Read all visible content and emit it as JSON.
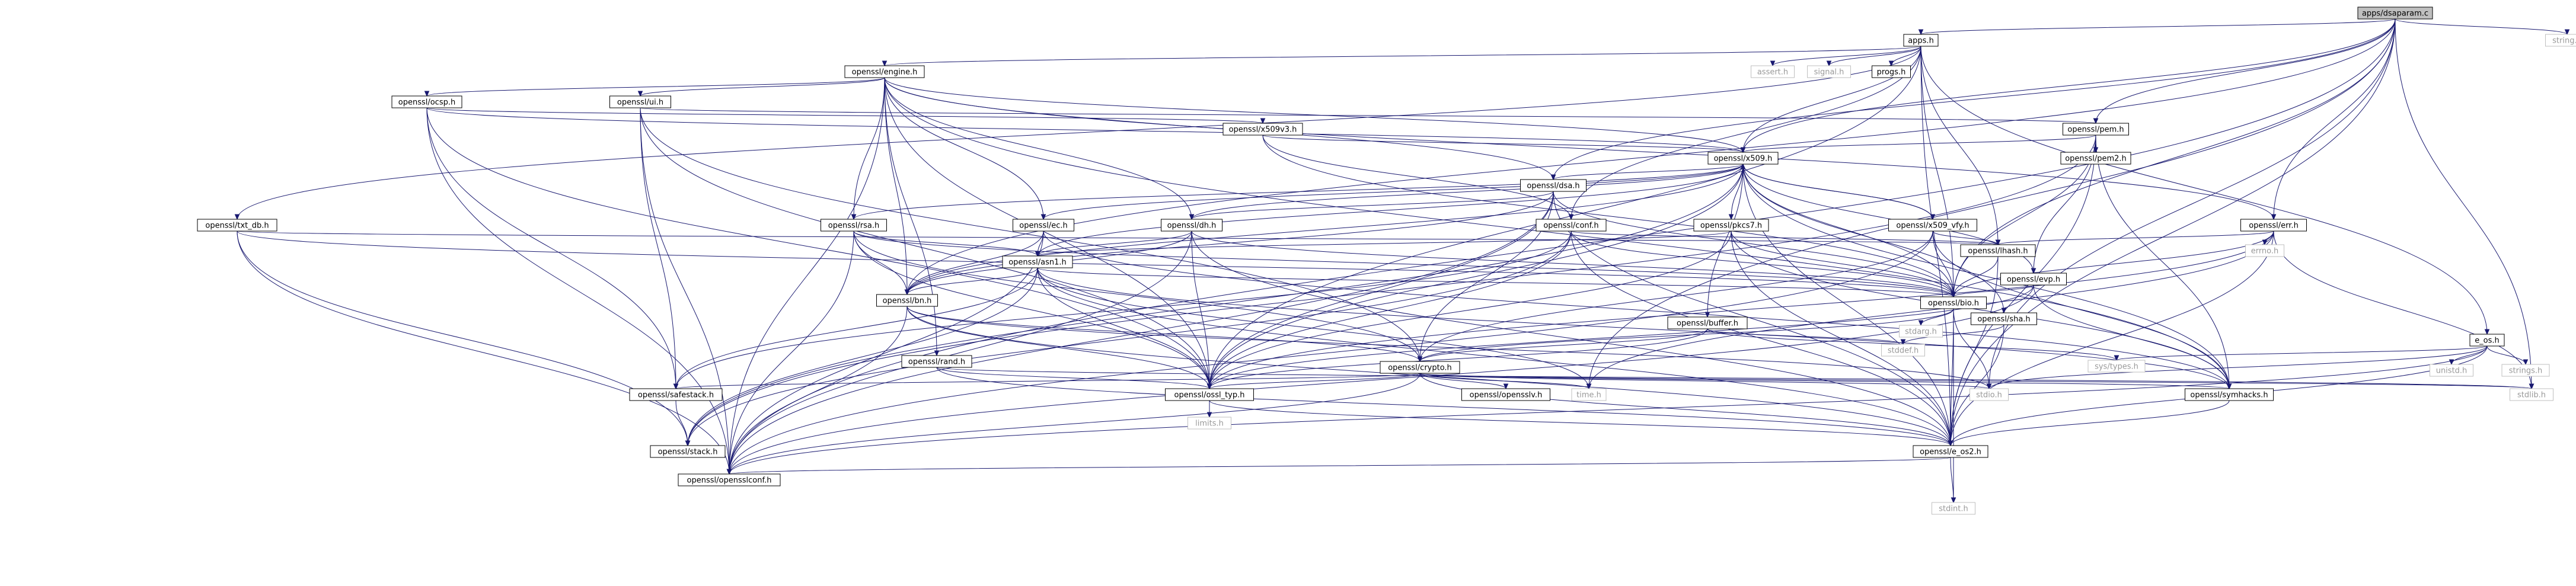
{
  "colors": {
    "edge": "#191970",
    "box_border": "#000000",
    "box_fill": "#ffffff",
    "root_fill": "#bfbfbf",
    "system_border": "#bfbfbf",
    "system_text": "#999999"
  },
  "nodes": [
    {
      "id": "root",
      "label": "apps/dsaparam.c",
      "kind": "root"
    },
    {
      "id": "apps",
      "label": "apps.h",
      "kind": "file"
    },
    {
      "id": "string",
      "label": "string.h",
      "kind": "system"
    },
    {
      "id": "assert",
      "label": "assert.h",
      "kind": "system"
    },
    {
      "id": "signal",
      "label": "signal.h",
      "kind": "system"
    },
    {
      "id": "progs",
      "label": "progs.h",
      "kind": "file"
    },
    {
      "id": "engine",
      "label": "openssl/engine.h",
      "kind": "file"
    },
    {
      "id": "ocsp",
      "label": "openssl/ocsp.h",
      "kind": "file"
    },
    {
      "id": "ui",
      "label": "openssl/ui.h",
      "kind": "file"
    },
    {
      "id": "x509v3",
      "label": "openssl/x509v3.h",
      "kind": "file"
    },
    {
      "id": "pem",
      "label": "openssl/pem.h",
      "kind": "file"
    },
    {
      "id": "pem2",
      "label": "openssl/pem2.h",
      "kind": "file"
    },
    {
      "id": "x509",
      "label": "openssl/x509.h",
      "kind": "file"
    },
    {
      "id": "dsa",
      "label": "openssl/dsa.h",
      "kind": "file"
    },
    {
      "id": "txt_db",
      "label": "openssl/txt_db.h",
      "kind": "file"
    },
    {
      "id": "rsa",
      "label": "openssl/rsa.h",
      "kind": "file"
    },
    {
      "id": "ec",
      "label": "openssl/ec.h",
      "kind": "file"
    },
    {
      "id": "dh",
      "label": "openssl/dh.h",
      "kind": "file"
    },
    {
      "id": "conf",
      "label": "openssl/conf.h",
      "kind": "file"
    },
    {
      "id": "pkcs7",
      "label": "openssl/pkcs7.h",
      "kind": "file"
    },
    {
      "id": "x509_vfy",
      "label": "openssl/x509_vfy.h",
      "kind": "file"
    },
    {
      "id": "err",
      "label": "openssl/err.h",
      "kind": "file"
    },
    {
      "id": "errno",
      "label": "errno.h",
      "kind": "system"
    },
    {
      "id": "lhash",
      "label": "openssl/lhash.h",
      "kind": "file"
    },
    {
      "id": "evp",
      "label": "openssl/evp.h",
      "kind": "file"
    },
    {
      "id": "asn1",
      "label": "openssl/asn1.h",
      "kind": "file"
    },
    {
      "id": "bn",
      "label": "openssl/bn.h",
      "kind": "file"
    },
    {
      "id": "bio",
      "label": "openssl/bio.h",
      "kind": "file"
    },
    {
      "id": "sha",
      "label": "openssl/sha.h",
      "kind": "file"
    },
    {
      "id": "buffer",
      "label": "openssl/buffer.h",
      "kind": "file"
    },
    {
      "id": "stdarg",
      "label": "stdarg.h",
      "kind": "system"
    },
    {
      "id": "stddef",
      "label": "stddef.h",
      "kind": "system"
    },
    {
      "id": "e_os",
      "label": "e_os.h",
      "kind": "file"
    },
    {
      "id": "unistd",
      "label": "unistd.h",
      "kind": "system"
    },
    {
      "id": "strings",
      "label": "strings.h",
      "kind": "system"
    },
    {
      "id": "systypes",
      "label": "sys/types.h",
      "kind": "system"
    },
    {
      "id": "crypto",
      "label": "openssl/crypto.h",
      "kind": "file"
    },
    {
      "id": "rand",
      "label": "openssl/rand.h",
      "kind": "file"
    },
    {
      "id": "time",
      "label": "time.h",
      "kind": "system"
    },
    {
      "id": "opensslv",
      "label": "openssl/opensslv.h",
      "kind": "file"
    },
    {
      "id": "stdio",
      "label": "stdio.h",
      "kind": "system"
    },
    {
      "id": "symhacks",
      "label": "openssl/symhacks.h",
      "kind": "file"
    },
    {
      "id": "stdlib",
      "label": "stdlib.h",
      "kind": "system"
    },
    {
      "id": "safestack",
      "label": "openssl/safestack.h",
      "kind": "file"
    },
    {
      "id": "ossl_typ",
      "label": "openssl/ossl_typ.h",
      "kind": "file"
    },
    {
      "id": "limits",
      "label": "limits.h",
      "kind": "system"
    },
    {
      "id": "stack",
      "label": "openssl/stack.h",
      "kind": "file"
    },
    {
      "id": "e_os2",
      "label": "openssl/e_os2.h",
      "kind": "file"
    },
    {
      "id": "opensslconf",
      "label": "openssl/opensslconf.h",
      "kind": "file"
    },
    {
      "id": "stdint",
      "label": "stdint.h",
      "kind": "system"
    }
  ],
  "edges": [
    [
      "root",
      "apps"
    ],
    [
      "root",
      "string"
    ],
    [
      "root",
      "x509"
    ],
    [
      "root",
      "pem"
    ],
    [
      "root",
      "err"
    ],
    [
      "root",
      "bio"
    ],
    [
      "root",
      "bn"
    ],
    [
      "root",
      "dsa"
    ],
    [
      "root",
      "time"
    ],
    [
      "root",
      "stdio"
    ],
    [
      "root",
      "stdlib"
    ],
    [
      "root",
      "e_os2"
    ],
    [
      "root",
      "opensslconf"
    ],
    [
      "apps",
      "assert"
    ],
    [
      "apps",
      "signal"
    ],
    [
      "apps",
      "progs"
    ],
    [
      "apps",
      "engine"
    ],
    [
      "apps",
      "txt_db"
    ],
    [
      "apps",
      "x509"
    ],
    [
      "apps",
      "conf"
    ],
    [
      "apps",
      "lhash"
    ],
    [
      "apps",
      "bio"
    ],
    [
      "apps",
      "e_os"
    ],
    [
      "apps",
      "ossl_typ"
    ],
    [
      "apps",
      "e_os2"
    ],
    [
      "engine",
      "ocsp"
    ],
    [
      "engine",
      "ui"
    ],
    [
      "engine",
      "x509"
    ],
    [
      "engine",
      "dsa"
    ],
    [
      "engine",
      "rsa"
    ],
    [
      "engine",
      "ec"
    ],
    [
      "engine",
      "dh"
    ],
    [
      "engine",
      "bn"
    ],
    [
      "engine",
      "rand"
    ],
    [
      "engine",
      "err"
    ],
    [
      "engine",
      "symhacks"
    ],
    [
      "engine",
      "ossl_typ"
    ],
    [
      "engine",
      "opensslconf"
    ],
    [
      "ocsp",
      "x509v3"
    ],
    [
      "ocsp",
      "x509"
    ],
    [
      "ocsp",
      "safestack"
    ],
    [
      "ocsp",
      "ossl_typ"
    ],
    [
      "ocsp",
      "opensslconf"
    ],
    [
      "ui",
      "pem"
    ],
    [
      "ui",
      "crypto"
    ],
    [
      "ui",
      "safestack"
    ],
    [
      "ui",
      "ossl_typ"
    ],
    [
      "ui",
      "opensslconf"
    ],
    [
      "x509v3",
      "x509"
    ],
    [
      "x509v3",
      "bio"
    ],
    [
      "x509v3",
      "conf"
    ],
    [
      "pem",
      "pem2"
    ],
    [
      "pem",
      "x509"
    ],
    [
      "pem",
      "evp"
    ],
    [
      "pem",
      "bio"
    ],
    [
      "pem",
      "stack"
    ],
    [
      "pem",
      "symhacks"
    ],
    [
      "pem",
      "e_os2"
    ],
    [
      "x509",
      "dsa"
    ],
    [
      "x509",
      "rsa"
    ],
    [
      "x509",
      "ec"
    ],
    [
      "x509",
      "dh"
    ],
    [
      "x509",
      "asn1"
    ],
    [
      "x509",
      "bn"
    ],
    [
      "x509",
      "bio"
    ],
    [
      "x509",
      "buffer"
    ],
    [
      "x509",
      "evp"
    ],
    [
      "x509",
      "sha"
    ],
    [
      "x509",
      "x509_vfy"
    ],
    [
      "x509",
      "pkcs7"
    ],
    [
      "x509",
      "stack"
    ],
    [
      "x509",
      "symhacks"
    ],
    [
      "x509",
      "ossl_typ"
    ],
    [
      "x509",
      "e_os2"
    ],
    [
      "dsa",
      "dh"
    ],
    [
      "dsa",
      "bn"
    ],
    [
      "dsa",
      "bio"
    ],
    [
      "dsa",
      "crypto"
    ],
    [
      "dsa",
      "ossl_typ"
    ],
    [
      "dsa",
      "e_os2"
    ],
    [
      "dsa",
      "opensslconf"
    ],
    [
      "txt_db",
      "lhash"
    ],
    [
      "txt_db",
      "bio"
    ],
    [
      "txt_db",
      "stack"
    ],
    [
      "txt_db",
      "opensslconf"
    ],
    [
      "rsa",
      "asn1"
    ],
    [
      "rsa",
      "bn"
    ],
    [
      "rsa",
      "bio"
    ],
    [
      "rsa",
      "crypto"
    ],
    [
      "rsa",
      "ossl_typ"
    ],
    [
      "rsa",
      "opensslconf"
    ],
    [
      "ec",
      "asn1"
    ],
    [
      "ec",
      "bn"
    ],
    [
      "ec",
      "symhacks"
    ],
    [
      "ec",
      "opensslconf"
    ],
    [
      "dh",
      "asn1"
    ],
    [
      "dh",
      "bn"
    ],
    [
      "dh",
      "bio"
    ],
    [
      "dh",
      "ossl_typ"
    ],
    [
      "dh",
      "e_os2"
    ],
    [
      "dh",
      "opensslconf"
    ],
    [
      "conf",
      "bio"
    ],
    [
      "conf",
      "lhash"
    ],
    [
      "conf",
      "stack"
    ],
    [
      "conf",
      "safestack"
    ],
    [
      "conf",
      "ossl_typ"
    ],
    [
      "conf",
      "e_os2"
    ],
    [
      "pkcs7",
      "asn1"
    ],
    [
      "pkcs7",
      "bio"
    ],
    [
      "pkcs7",
      "symhacks"
    ],
    [
      "pkcs7",
      "ossl_typ"
    ],
    [
      "pkcs7",
      "e_os2"
    ],
    [
      "x509_vfy",
      "x509"
    ],
    [
      "x509_vfy",
      "lhash"
    ],
    [
      "x509_vfy",
      "bio"
    ],
    [
      "x509_vfy",
      "crypto"
    ],
    [
      "x509_vfy",
      "symhacks"
    ],
    [
      "x509_vfy",
      "opensslconf"
    ],
    [
      "err",
      "errno"
    ],
    [
      "err",
      "lhash"
    ],
    [
      "err",
      "bio"
    ],
    [
      "err",
      "time"
    ],
    [
      "err",
      "stdlib"
    ],
    [
      "err",
      "ossl_typ"
    ],
    [
      "err",
      "e_os2"
    ],
    [
      "lhash",
      "bio"
    ],
    [
      "lhash",
      "e_os2"
    ],
    [
      "evp",
      "bio"
    ],
    [
      "evp",
      "ossl_typ"
    ],
    [
      "evp",
      "symhacks"
    ],
    [
      "evp",
      "opensslconf"
    ],
    [
      "asn1",
      "bn"
    ],
    [
      "asn1",
      "bio"
    ],
    [
      "asn1",
      "stack"
    ],
    [
      "asn1",
      "safestack"
    ],
    [
      "asn1",
      "time"
    ],
    [
      "asn1",
      "symhacks"
    ],
    [
      "asn1",
      "ossl_typ"
    ],
    [
      "asn1",
      "e_os2"
    ],
    [
      "bn",
      "crypto"
    ],
    [
      "bn",
      "stdio"
    ],
    [
      "bn",
      "ossl_typ"
    ],
    [
      "bn",
      "e_os2"
    ],
    [
      "bn",
      "opensslconf"
    ],
    [
      "bio",
      "stdarg"
    ],
    [
      "bio",
      "stdio"
    ],
    [
      "bio",
      "crypto"
    ],
    [
      "bio",
      "stdint"
    ],
    [
      "bio",
      "e_os2"
    ],
    [
      "sha",
      "stddef"
    ],
    [
      "sha",
      "e_os2"
    ],
    [
      "buffer",
      "stddef"
    ],
    [
      "buffer",
      "systypes"
    ],
    [
      "buffer",
      "crypto"
    ],
    [
      "buffer",
      "ossl_typ"
    ],
    [
      "e_os",
      "unistd"
    ],
    [
      "e_os",
      "strings"
    ],
    [
      "e_os",
      "systypes"
    ],
    [
      "e_os",
      "stdio"
    ],
    [
      "e_os",
      "e_os2"
    ],
    [
      "e_os",
      "opensslconf"
    ],
    [
      "crypto",
      "time"
    ],
    [
      "crypto",
      "opensslv"
    ],
    [
      "crypto",
      "stdio"
    ],
    [
      "crypto",
      "symhacks"
    ],
    [
      "crypto",
      "stdlib"
    ],
    [
      "crypto",
      "safestack"
    ],
    [
      "crypto",
      "ossl_typ"
    ],
    [
      "crypto",
      "e_os2"
    ],
    [
      "crypto",
      "opensslconf"
    ],
    [
      "rand",
      "ossl_typ"
    ],
    [
      "rand",
      "e_os2"
    ],
    [
      "rand",
      "stdlib"
    ],
    [
      "symhacks",
      "e_os2"
    ],
    [
      "safestack",
      "stack"
    ],
    [
      "ossl_typ",
      "limits"
    ],
    [
      "ossl_typ",
      "e_os2"
    ],
    [
      "e_os2",
      "opensslconf"
    ],
    [
      "e_os2",
      "stdint"
    ]
  ]
}
